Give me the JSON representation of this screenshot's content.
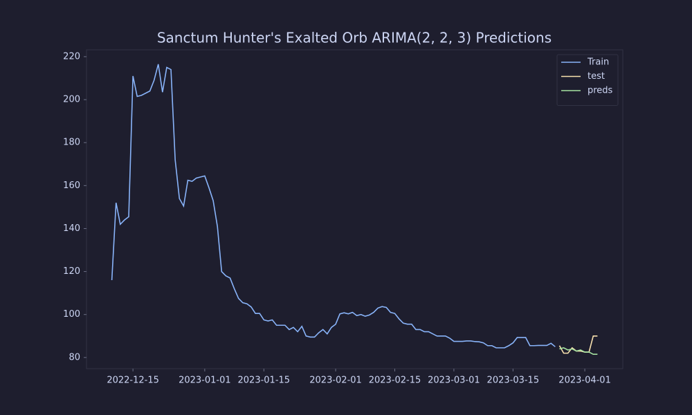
{
  "chart_data": {
    "type": "line",
    "title": "Sanctum Hunter's Exalted Orb ARIMA(2, 2, 3) Predictions",
    "xlim": [
      "2022-12-04",
      "2023-04-10"
    ],
    "ylim": [
      74.8,
      223.2
    ],
    "xticks": [
      "2022-12-15",
      "2023-01-01",
      "2023-01-15",
      "2023-02-01",
      "2023-02-15",
      "2023-03-01",
      "2023-03-15",
      "2023-04-01"
    ],
    "yticks": [
      80,
      100,
      120,
      140,
      160,
      180,
      200,
      220
    ],
    "legend": "upper right",
    "series": [
      {
        "name": "Train",
        "color": "#89b4fa",
        "x": [
          "2022-12-10",
          "2022-12-11",
          "2022-12-12",
          "2022-12-13",
          "2022-12-14",
          "2022-12-15",
          "2022-12-16",
          "2022-12-17",
          "2022-12-18",
          "2022-12-19",
          "2022-12-20",
          "2022-12-21",
          "2022-12-22",
          "2022-12-23",
          "2022-12-24",
          "2022-12-25",
          "2022-12-26",
          "2022-12-27",
          "2022-12-28",
          "2022-12-29",
          "2022-12-30",
          "2022-12-31",
          "2023-01-01",
          "2023-01-02",
          "2023-01-03",
          "2023-01-04",
          "2023-01-05",
          "2023-01-06",
          "2023-01-07",
          "2023-01-08",
          "2023-01-09",
          "2023-01-10",
          "2023-01-11",
          "2023-01-12",
          "2023-01-13",
          "2023-01-14",
          "2023-01-15",
          "2023-01-16",
          "2023-01-17",
          "2023-01-18",
          "2023-01-19",
          "2023-01-20",
          "2023-01-21",
          "2023-01-22",
          "2023-01-23",
          "2023-01-24",
          "2023-01-25",
          "2023-01-26",
          "2023-01-27",
          "2023-01-28",
          "2023-01-29",
          "2023-01-30",
          "2023-01-31",
          "2023-02-01",
          "2023-02-02",
          "2023-02-03",
          "2023-02-04",
          "2023-02-05",
          "2023-02-06",
          "2023-02-07",
          "2023-02-08",
          "2023-02-09",
          "2023-02-10",
          "2023-02-11",
          "2023-02-12",
          "2023-02-13",
          "2023-02-14",
          "2023-02-15",
          "2023-02-16",
          "2023-02-17",
          "2023-02-18",
          "2023-02-19",
          "2023-02-20",
          "2023-02-21",
          "2023-02-22",
          "2023-02-23",
          "2023-02-24",
          "2023-02-25",
          "2023-02-26",
          "2023-02-27",
          "2023-02-28",
          "2023-03-01",
          "2023-03-02",
          "2023-03-03",
          "2023-03-04",
          "2023-03-05",
          "2023-03-06",
          "2023-03-07",
          "2023-03-08",
          "2023-03-09",
          "2023-03-10",
          "2023-03-11",
          "2023-03-12",
          "2023-03-13",
          "2023-03-14",
          "2023-03-15",
          "2023-03-16",
          "2023-03-17",
          "2023-03-18",
          "2023-03-19",
          "2023-03-20",
          "2023-03-21",
          "2023-03-22",
          "2023-03-23",
          "2023-03-24",
          "2023-03-25"
        ],
        "values": [
          116,
          152,
          142,
          144,
          145.5,
          211,
          201.5,
          202,
          203,
          204,
          209,
          216.5,
          203.5,
          215,
          214,
          172,
          154,
          150.5,
          162.5,
          162,
          163.5,
          164,
          164.5,
          159,
          153,
          141,
          120,
          118,
          117,
          112,
          107.5,
          105.5,
          105,
          103.5,
          100.5,
          100.5,
          97.5,
          97,
          97.5,
          95,
          95,
          95,
          93,
          94,
          92,
          94.5,
          90,
          89.5,
          89.5,
          91.5,
          93,
          91,
          94,
          95.5,
          100.3,
          100.8,
          100.3,
          101,
          99.5,
          100,
          99.2,
          99.8,
          101,
          103,
          103.7,
          103.3,
          101,
          100.5,
          98,
          96,
          95.5,
          95.5,
          93,
          93,
          92,
          92,
          91,
          90,
          90,
          90,
          89,
          87.5,
          87.5,
          87.5,
          87.7,
          87.7,
          87.4,
          87.3,
          86.8,
          85.5,
          85.5,
          84.5,
          84.5,
          84.5,
          85.5,
          86.8,
          89.3,
          89.3,
          89.3,
          85.5,
          85.5,
          85.6,
          85.6,
          85.6,
          86.6,
          85
        ]
      },
      {
        "name": "test",
        "color": "#f9e2af",
        "x": [
          "2023-03-26",
          "2023-03-27",
          "2023-03-28",
          "2023-03-29",
          "2023-03-30",
          "2023-03-31",
          "2023-04-01",
          "2023-04-02",
          "2023-04-03",
          "2023-04-04"
        ],
        "values": [
          85.5,
          82,
          82,
          84.5,
          83,
          83,
          82.5,
          82.5,
          90,
          90
        ]
      },
      {
        "name": "preds",
        "color": "#a6e3a1",
        "x": [
          "2023-03-26",
          "2023-03-27",
          "2023-03-28",
          "2023-03-29",
          "2023-03-30",
          "2023-03-31",
          "2023-04-01",
          "2023-04-02",
          "2023-04-03",
          "2023-04-04"
        ],
        "values": [
          84,
          84.5,
          83.5,
          84,
          83,
          83.5,
          82.5,
          82.5,
          81.5,
          81.5
        ]
      }
    ]
  }
}
